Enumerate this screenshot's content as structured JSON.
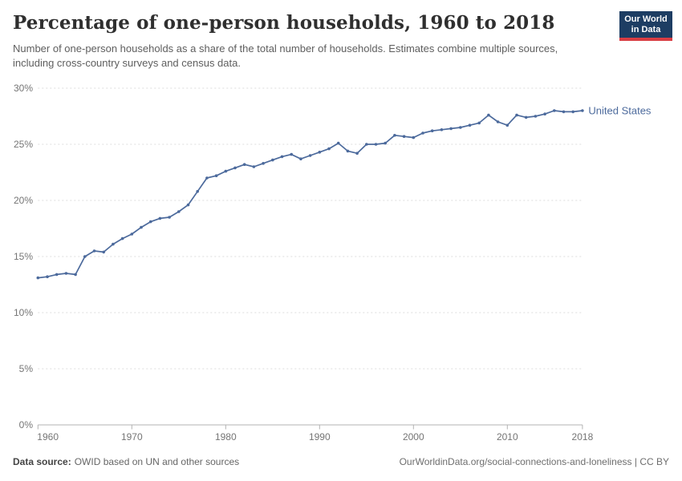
{
  "header": {
    "title": "Percentage of one-person households, 1960 to 2018",
    "subtitle": "Number of one-person households as a share of the total number of households. Estimates combine multiple sources, including cross-country surveys and census data."
  },
  "logo": {
    "line1": "Our World",
    "line2": "in Data",
    "bg_color": "#1d3d63",
    "accent_color": "#d93d43"
  },
  "chart_data": {
    "type": "line",
    "title": "Percentage of one-person households, 1960 to 2018",
    "xlabel": "",
    "ylabel": "",
    "xlim": [
      1960,
      2018
    ],
    "ylim": [
      0,
      30
    ],
    "xticks": [
      1960,
      1970,
      1980,
      1990,
      2000,
      2010,
      2018
    ],
    "yticks": [
      0,
      5,
      10,
      15,
      20,
      25,
      30
    ],
    "ytick_suffix": "%",
    "grid": "horizontal-dashed",
    "legend": "end-of-line-label",
    "series": [
      {
        "name": "United States",
        "color": "#4c6a9c",
        "years": [
          1960,
          1961,
          1962,
          1963,
          1964,
          1965,
          1966,
          1967,
          1968,
          1969,
          1970,
          1971,
          1972,
          1973,
          1974,
          1975,
          1976,
          1977,
          1978,
          1979,
          1980,
          1981,
          1982,
          1983,
          1984,
          1985,
          1986,
          1987,
          1988,
          1989,
          1990,
          1991,
          1992,
          1993,
          1994,
          1995,
          1996,
          1997,
          1998,
          1999,
          2000,
          2001,
          2002,
          2003,
          2004,
          2005,
          2006,
          2007,
          2008,
          2009,
          2010,
          2011,
          2012,
          2013,
          2014,
          2015,
          2016,
          2017,
          2018
        ],
        "values": [
          13.1,
          13.2,
          13.4,
          13.5,
          13.4,
          15.0,
          15.5,
          15.4,
          16.1,
          16.6,
          17.0,
          17.6,
          18.1,
          18.4,
          18.5,
          19.0,
          19.6,
          20.8,
          22.0,
          22.2,
          22.6,
          22.9,
          23.2,
          23.0,
          23.3,
          23.6,
          23.9,
          24.1,
          23.7,
          24.0,
          24.3,
          24.6,
          25.1,
          24.4,
          24.2,
          25.0,
          25.0,
          25.1,
          25.8,
          25.7,
          25.6,
          26.0,
          26.2,
          26.3,
          26.4,
          26.5,
          26.7,
          26.9,
          27.6,
          27.0,
          26.7,
          27.6,
          27.4,
          27.5,
          27.7,
          28.0,
          27.9,
          27.9,
          28.0
        ]
      }
    ],
    "style": {
      "grid_color": "#dcdcdc",
      "axis_color": "#b3b3b3",
      "tick_label_color": "#757575"
    }
  },
  "footer": {
    "datasource_label": "Data source:",
    "datasource_text": "OWID based on UN and other sources",
    "link_text": "OurWorldinData.org/social-connections-and-loneliness",
    "separator": " | ",
    "license_text": "CC BY"
  }
}
